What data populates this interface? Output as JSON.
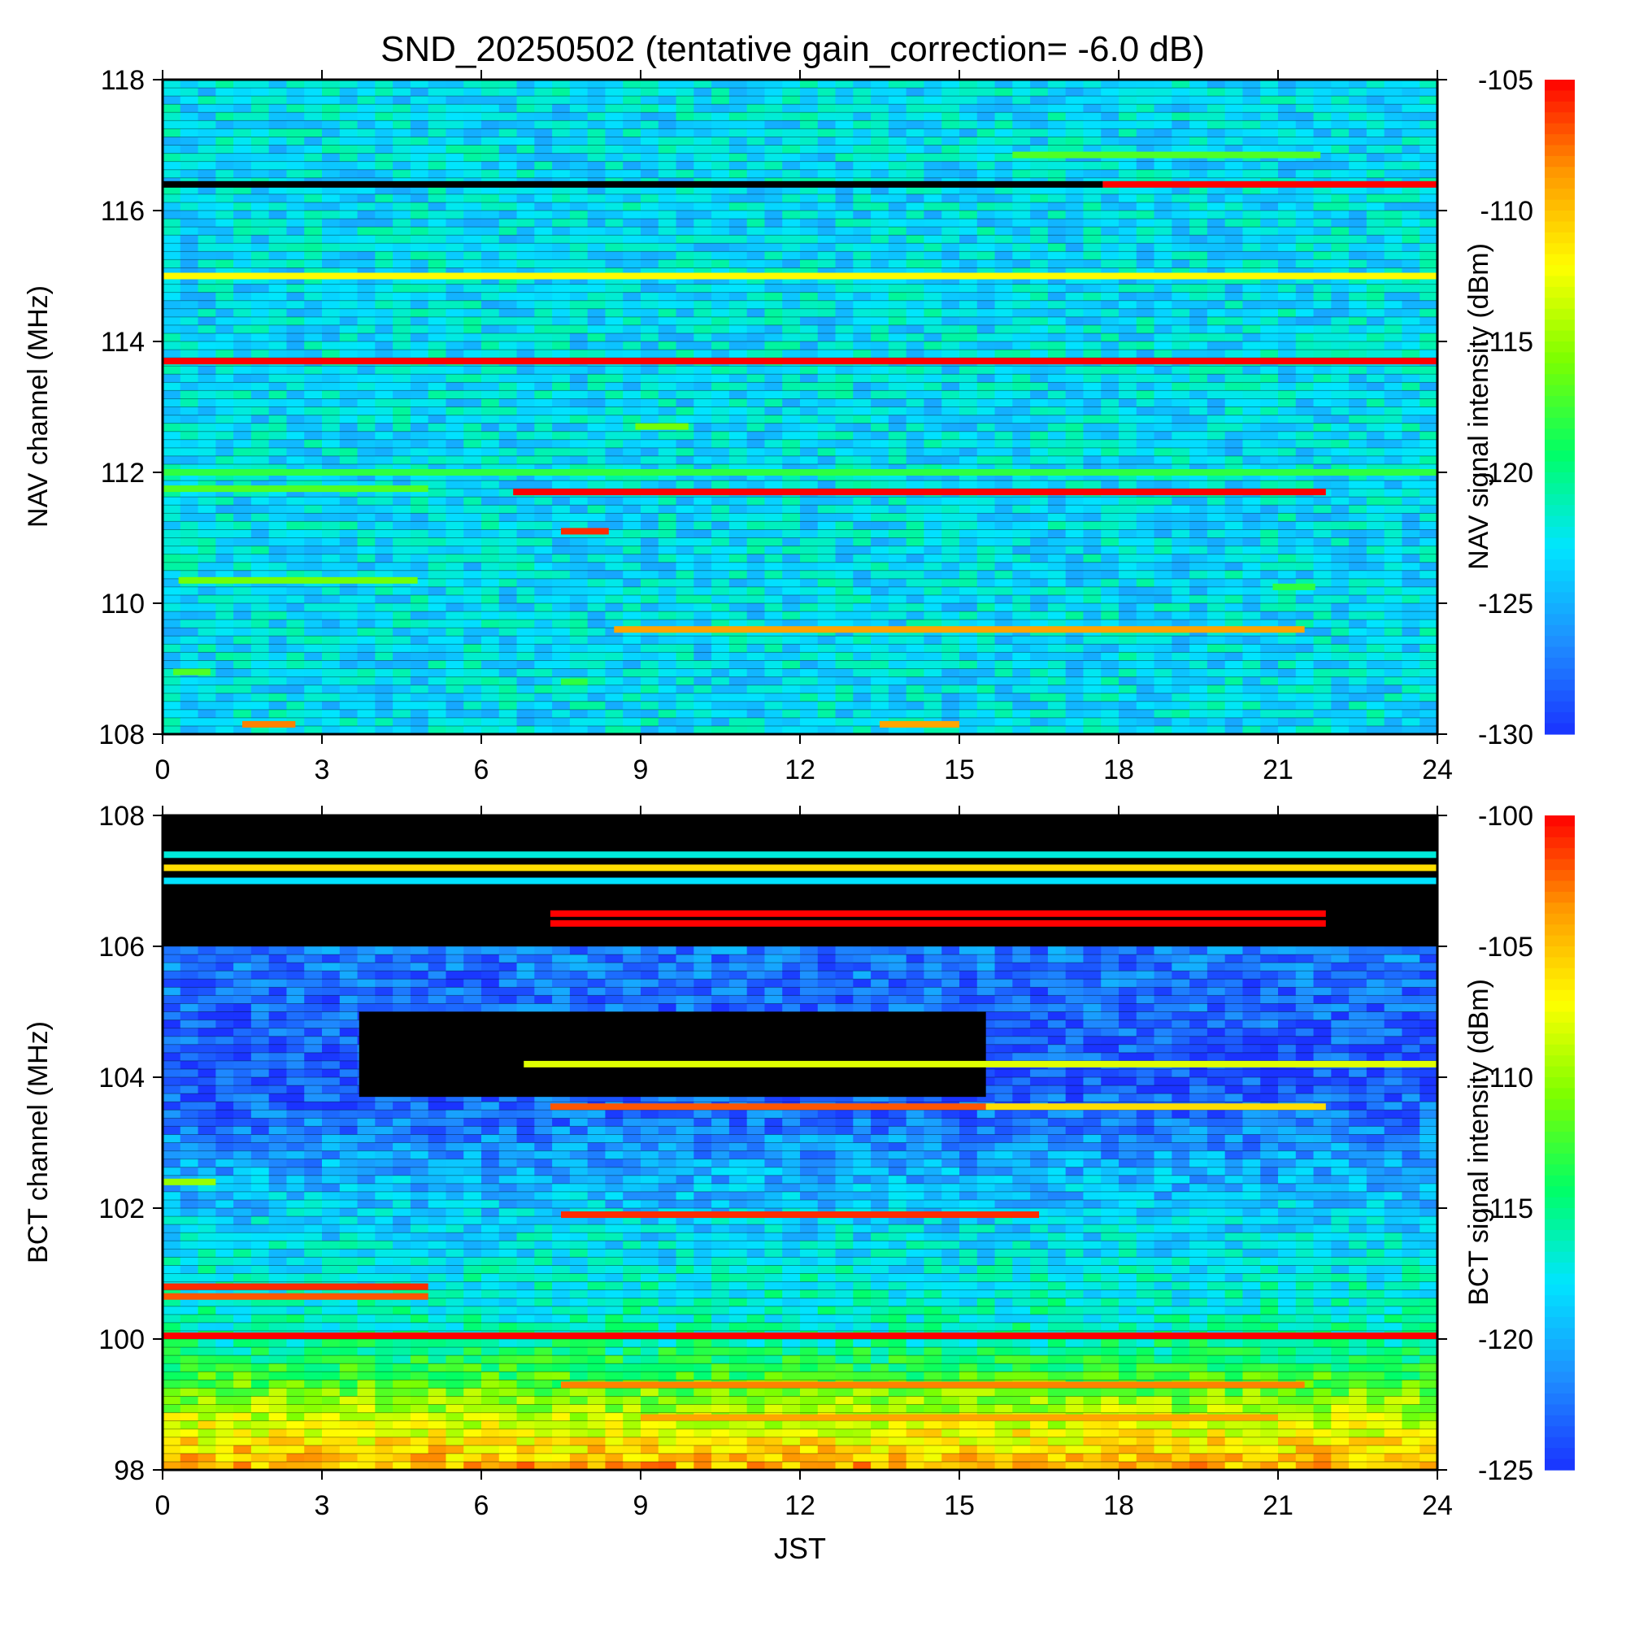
{
  "title": "SND_20250502 (tentative gain_correction= -6.0 dB)",
  "colors": {
    "background": "#ffffff",
    "axis": "#000000",
    "colormap": [
      "#1a33ff",
      "#1e90ff",
      "#00e5ff",
      "#00ff66",
      "#7cff00",
      "#ffff00",
      "#ff9900",
      "#ff0000"
    ],
    "band_black": "#000000"
  },
  "chart_data": [
    {
      "type": "heatmap",
      "panel": "nav",
      "xlabel": "",
      "ylabel": "NAV channel (MHz)",
      "colorbar_label": "NAV signal intensity (dBm)",
      "xlim": [
        0,
        24
      ],
      "ylim": [
        108,
        118
      ],
      "x_ticks": [
        0,
        3,
        6,
        9,
        12,
        15,
        18,
        21,
        24
      ],
      "y_ticks": [
        108,
        110,
        112,
        114,
        116,
        118
      ],
      "colorbar_range": [
        -130,
        -105
      ],
      "colorbar_ticks": [
        -105,
        -110,
        -115,
        -120,
        -125,
        -130
      ],
      "background_level": -123,
      "features": [
        {
          "f": 116.4,
          "t0": 0,
          "t1": 17.7,
          "level": "black"
        },
        {
          "f": 116.4,
          "t0": 17.7,
          "t1": 24,
          "level": -105
        },
        {
          "f": 116.85,
          "t0": 16.0,
          "t1": 21.8,
          "level": -117
        },
        {
          "f": 115.0,
          "t0": 0,
          "t1": 24,
          "level": -112
        },
        {
          "f": 113.7,
          "t0": 0,
          "t1": 24,
          "level": -105
        },
        {
          "f": 112.7,
          "t0": 8.9,
          "t1": 9.9,
          "level": -116
        },
        {
          "f": 112.0,
          "t0": 0,
          "t1": 24,
          "level": -118
        },
        {
          "f": 111.75,
          "t0": 0,
          "t1": 5.0,
          "level": -117
        },
        {
          "f": 111.7,
          "t0": 6.6,
          "t1": 21.9,
          "level": -105
        },
        {
          "f": 111.1,
          "t0": 7.5,
          "t1": 8.4,
          "level": -106
        },
        {
          "f": 110.35,
          "t0": 0.3,
          "t1": 4.8,
          "level": -116
        },
        {
          "f": 110.25,
          "t0": 20.9,
          "t1": 21.7,
          "level": -118
        },
        {
          "f": 109.6,
          "t0": 8.5,
          "t1": 21.5,
          "level": -109
        },
        {
          "f": 108.95,
          "t0": 0.2,
          "t1": 0.9,
          "level": -117
        },
        {
          "f": 108.8,
          "t0": 7.5,
          "t1": 8.0,
          "level": -118
        },
        {
          "f": 108.15,
          "t0": 1.5,
          "t1": 2.5,
          "level": -108
        },
        {
          "f": 108.15,
          "t0": 13.5,
          "t1": 15.0,
          "level": -109
        }
      ]
    },
    {
      "type": "heatmap",
      "panel": "bct",
      "xlabel": "JST",
      "ylabel": "BCT channel (MHz)",
      "colorbar_label": "BCT signal intensity (dBm)",
      "xlim": [
        0,
        24
      ],
      "ylim": [
        98,
        108
      ],
      "x_ticks": [
        0,
        3,
        6,
        9,
        12,
        15,
        18,
        21,
        24
      ],
      "y_ticks": [
        98,
        100,
        102,
        104,
        106,
        108
      ],
      "colorbar_range": [
        -125,
        -100
      ],
      "colorbar_ticks": [
        -100,
        -105,
        -110,
        -115,
        -120,
        -125
      ],
      "background_gradient": [
        {
          "f": 98.0,
          "level": -104
        },
        {
          "f": 99.0,
          "level": -110
        },
        {
          "f": 100.0,
          "level": -116
        },
        {
          "f": 101.5,
          "level": -118
        },
        {
          "f": 102.5,
          "level": -120
        },
        {
          "f": 104.0,
          "level": -124
        },
        {
          "f": 106.0,
          "level": -122
        }
      ],
      "features": [
        {
          "f": 107.4,
          "t0": 0,
          "t1": 24,
          "level": -117
        },
        {
          "f": 107.2,
          "t0": 0,
          "t1": 24,
          "level": -106
        },
        {
          "f": 107.0,
          "t0": 0,
          "t1": 24,
          "level": -118
        },
        {
          "f": 106.5,
          "t0": 7.3,
          "t1": 21.9,
          "level": -100
        },
        {
          "f": 106.35,
          "t0": 7.3,
          "t1": 21.9,
          "level": -100
        },
        {
          "f": 104.2,
          "t0": 6.8,
          "t1": 24,
          "level": -108
        },
        {
          "f": 103.55,
          "t0": 7.3,
          "t1": 15.5,
          "level": -102
        },
        {
          "f": 103.55,
          "t0": 15.5,
          "t1": 21.9,
          "level": -106
        },
        {
          "f": 102.4,
          "t0": 0,
          "t1": 1.0,
          "level": -110
        },
        {
          "f": 101.9,
          "t0": 7.5,
          "t1": 16.5,
          "level": -101
        },
        {
          "f": 100.8,
          "t0": 0,
          "t1": 5.0,
          "level": -101
        },
        {
          "f": 100.65,
          "t0": 0,
          "t1": 5.0,
          "level": -102
        },
        {
          "f": 100.05,
          "t0": 0,
          "t1": 24,
          "level": -100
        },
        {
          "f": 99.3,
          "t0": 7.5,
          "t1": 21.5,
          "level": -103
        },
        {
          "f": 98.8,
          "t0": 9.0,
          "t1": 21.0,
          "level": -104
        }
      ],
      "black_regions": [
        {
          "f0": 106.0,
          "f1": 108.0,
          "t0": 0,
          "t1": 24
        },
        {
          "f0": 103.7,
          "f1": 105.0,
          "t0": 3.7,
          "t1": 15.5
        }
      ]
    }
  ]
}
